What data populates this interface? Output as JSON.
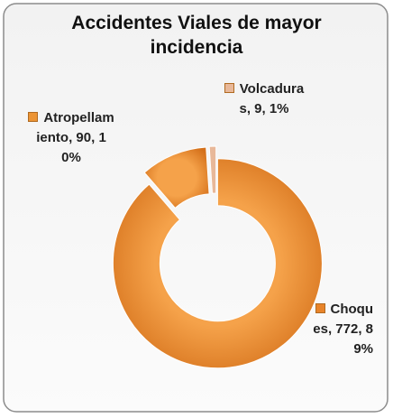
{
  "chart_data": {
    "type": "donut",
    "title": "Accidentes Viales de mayor incidencia",
    "categories": [
      "Choques",
      "Atropellamiento",
      "Volcaduras"
    ],
    "values": [
      772,
      90,
      9
    ],
    "percents": [
      89,
      10,
      1
    ],
    "percent_labels": [
      "89%",
      "10%",
      "1%"
    ],
    "colors": [
      "#e8842a",
      "#ec9434",
      "#e8b899"
    ]
  }
}
